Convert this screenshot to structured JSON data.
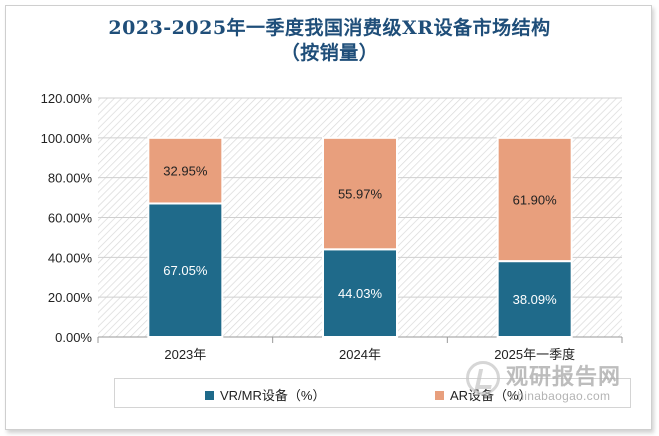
{
  "chart_data": {
    "type": "bar",
    "stacked": true,
    "title": "2023-2025年一季度我国消费级XR设备市场结构",
    "subtitle": "（按销量）",
    "categories": [
      "2023年",
      "2024年",
      "2025年一季度"
    ],
    "series": [
      {
        "name": "VR/MR设备（%）",
        "values": [
          67.05,
          44.03,
          38.09
        ],
        "labels": [
          "67.05%",
          "44.03%",
          "38.09%"
        ],
        "color": "#1f6a8a"
      },
      {
        "name": "AR设备（%）",
        "values": [
          32.95,
          55.97,
          61.9
        ],
        "labels": [
          "32.95%",
          "55.97%",
          "61.90%"
        ],
        "color": "#e89f7d"
      }
    ],
    "ylim": [
      0,
      120
    ],
    "yticks": [
      "0.00%",
      "20.00%",
      "40.00%",
      "60.00%",
      "80.00%",
      "100.00%",
      "120.00%"
    ],
    "grid": true,
    "legend": "bottom"
  },
  "watermark": {
    "cn": "观研报告网",
    "en": "chinabaogao.com"
  }
}
